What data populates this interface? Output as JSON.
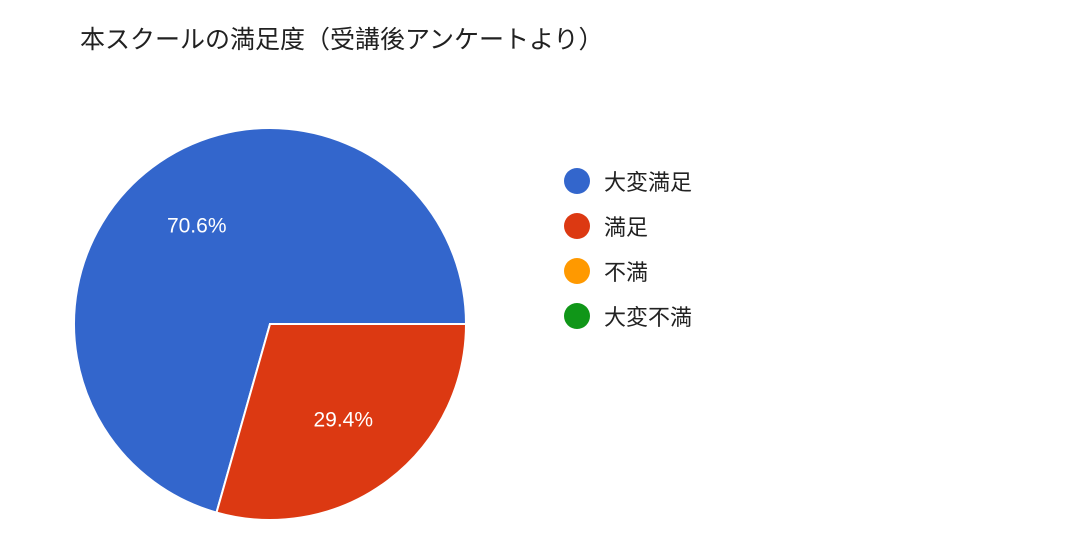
{
  "chart_data": {
    "type": "pie",
    "title": "本スクールの満足度（受講後アンケートより）",
    "categories": [
      "大変満足",
      "満足",
      "不満",
      "大変不満"
    ],
    "values": [
      70.6,
      29.4,
      0,
      0
    ],
    "colors": [
      "#3366cc",
      "#dc3912",
      "#ff9900",
      "#109618"
    ],
    "data_labels": [
      "70.6%",
      "29.4%",
      "",
      ""
    ],
    "legend_position": "right"
  }
}
